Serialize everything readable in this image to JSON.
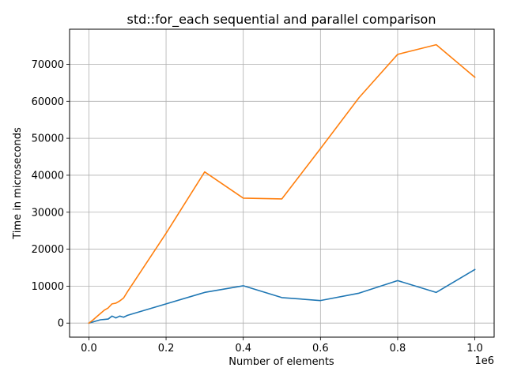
{
  "chart_data": {
    "type": "line",
    "title": "std::for_each sequential and parallel comparison",
    "xlabel": "Number of elements",
    "ylabel": "Time in microseconds",
    "x_offset_label": "1e6",
    "xlim": [
      -50000,
      1050000
    ],
    "ylim": [
      -3800,
      79500
    ],
    "grid": true,
    "x_ticks": [
      0,
      200000,
      400000,
      600000,
      800000,
      1000000
    ],
    "x_tick_labels": [
      "0.0",
      "0.2",
      "0.4",
      "0.6",
      "0.8",
      "1.0"
    ],
    "y_ticks": [
      0,
      10000,
      20000,
      30000,
      40000,
      50000,
      60000,
      70000
    ],
    "y_tick_labels": [
      "0",
      "10000",
      "20000",
      "30000",
      "40000",
      "50000",
      "60000",
      "70000"
    ],
    "series": [
      {
        "color": "#1f77b4",
        "x": [
          0,
          10000,
          20000,
          30000,
          40000,
          50000,
          60000,
          70000,
          80000,
          90000,
          100000,
          200000,
          300000,
          400000,
          500000,
          600000,
          700000,
          800000,
          900000,
          1000000
        ],
        "y": [
          0,
          300,
          600,
          900,
          1000,
          1100,
          1900,
          1400,
          1900,
          1600,
          2100,
          5200,
          8300,
          10100,
          6900,
          6100,
          8100,
          11500,
          8300,
          14500
        ]
      },
      {
        "color": "#ff7f0e",
        "x": [
          0,
          10000,
          20000,
          30000,
          40000,
          50000,
          60000,
          70000,
          80000,
          90000,
          100000,
          200000,
          300000,
          400000,
          500000,
          600000,
          700000,
          800000,
          900000,
          1000000
        ],
        "y": [
          0,
          800,
          1700,
          2600,
          3500,
          4100,
          5200,
          5400,
          6000,
          6800,
          8500,
          24300,
          40900,
          33800,
          33600,
          47200,
          61000,
          72700,
          75300,
          66500
        ]
      }
    ]
  }
}
